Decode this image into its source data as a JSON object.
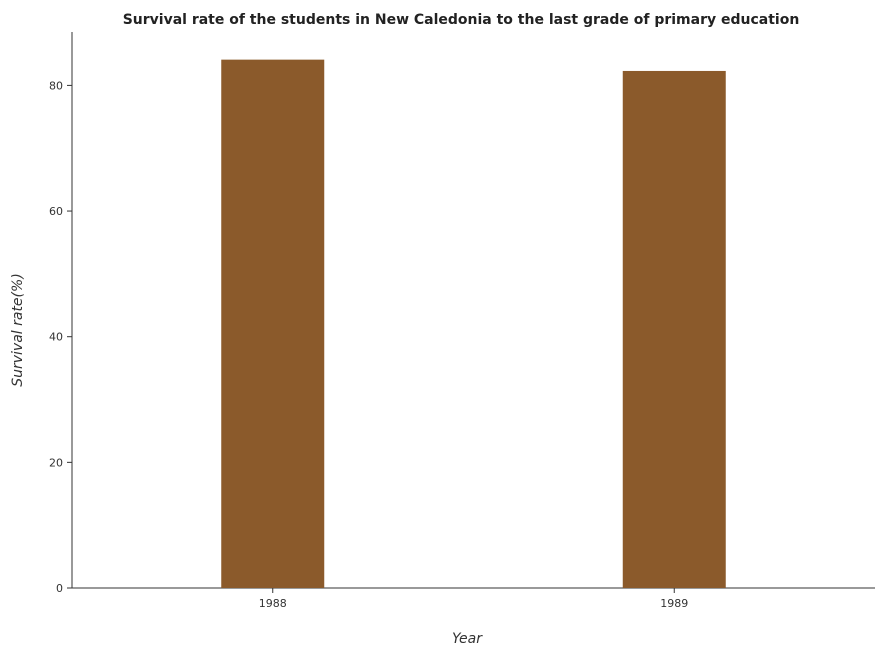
{
  "chart_data": {
    "type": "bar",
    "title": "Survival rate of the students in New Caledonia to the last grade of primary education",
    "xlabel": "Year",
    "ylabel": "Survival rate(%)",
    "categories": [
      "1988",
      "1989"
    ],
    "values": [
      84.1,
      82.3
    ],
    "ylim": [
      0,
      88.5
    ],
    "yticks": [
      0,
      20,
      40,
      60,
      80
    ],
    "bar_color": "#8b5a2b",
    "grid": false,
    "legend": "none"
  }
}
